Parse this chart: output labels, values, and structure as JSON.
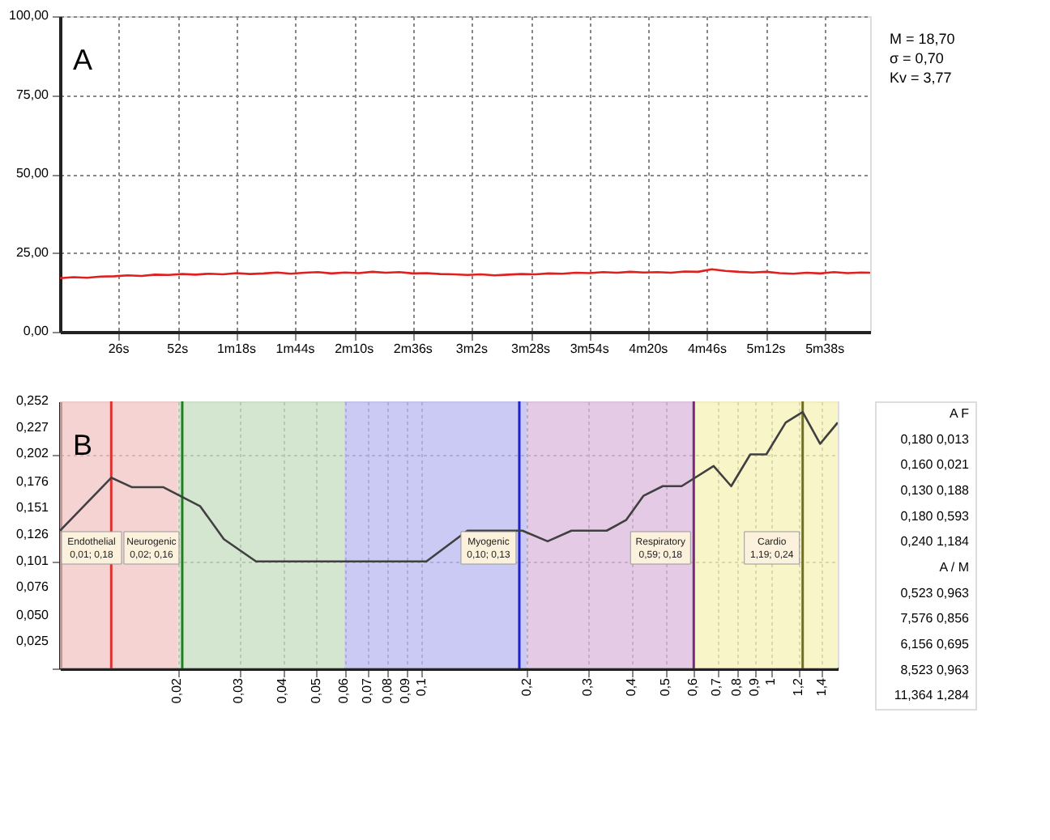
{
  "chart_data": [
    {
      "type": "line",
      "color": "#e02020",
      "xlim": [
        0,
        358
      ],
      "ylim": [
        0,
        100
      ],
      "grid": true,
      "x": [
        0,
        6,
        12,
        18,
        24,
        30,
        36,
        42,
        48,
        54,
        60,
        66,
        72,
        78,
        84,
        90,
        96,
        102,
        108,
        114,
        120,
        126,
        132,
        138,
        144,
        150,
        156,
        162,
        168,
        174,
        180,
        186,
        192,
        198,
        204,
        210,
        216,
        222,
        228,
        234,
        240,
        246,
        252,
        258,
        264,
        270,
        276,
        282,
        288,
        294,
        300,
        306,
        312,
        318,
        324,
        330,
        336,
        342,
        348,
        354,
        358
      ],
      "values": [
        17.0,
        17.3,
        17.1,
        17.5,
        17.6,
        17.9,
        17.7,
        18.1,
        18.0,
        18.3,
        18.1,
        18.4,
        18.2,
        18.6,
        18.3,
        18.5,
        18.8,
        18.4,
        18.7,
        18.9,
        18.5,
        18.8,
        18.6,
        19.0,
        18.7,
        18.9,
        18.5,
        18.6,
        18.3,
        18.2,
        18.0,
        18.2,
        17.9,
        18.1,
        18.3,
        18.2,
        18.5,
        18.4,
        18.7,
        18.6,
        18.9,
        18.7,
        19.0,
        18.8,
        18.9,
        18.7,
        19.1,
        19.0,
        19.8,
        19.3,
        19.0,
        18.8,
        19.0,
        18.6,
        18.4,
        18.7,
        18.5,
        18.9,
        18.6,
        18.8,
        18.7
      ],
      "xticks": [
        {
          "value": 26,
          "label": "26s"
        },
        {
          "value": 52,
          "label": "52s"
        },
        {
          "value": 78,
          "label": "1m18s"
        },
        {
          "value": 104,
          "label": "1m44s"
        },
        {
          "value": 130,
          "label": "2m10s"
        },
        {
          "value": 156,
          "label": "2m36s"
        },
        {
          "value": 182,
          "label": "3m2s"
        },
        {
          "value": 208,
          "label": "3m28s"
        },
        {
          "value": 234,
          "label": "3m54s"
        },
        {
          "value": 260,
          "label": "4m20s"
        },
        {
          "value": 286,
          "label": "4m46s"
        },
        {
          "value": 312,
          "label": "5m12s"
        },
        {
          "value": 338,
          "label": "5m38s"
        }
      ],
      "yticks": [
        {
          "value": 0,
          "label": "0,00"
        },
        {
          "value": 25,
          "label": "25,00"
        },
        {
          "value": 50,
          "label": "50,00"
        },
        {
          "value": 75,
          "label": "75,00"
        },
        {
          "value": 100,
          "label": "100,00"
        }
      ],
      "annotations": [
        "A",
        "M   = 18,70",
        "σ   = 0,70",
        "Kv  = 3,77"
      ]
    },
    {
      "type": "line",
      "color": "#404040",
      "log": "x",
      "grid": true,
      "xlim": [
        0.0092,
        1.55
      ],
      "ylim": [
        0,
        0.252
      ],
      "x": [
        0.0092,
        0.0129,
        0.0148,
        0.0182,
        0.0232,
        0.0271,
        0.0335,
        0.103,
        0.135,
        0.194,
        0.229,
        0.268,
        0.338,
        0.384,
        0.431,
        0.489,
        0.554,
        0.684,
        0.768,
        0.871,
        0.968,
        1.1,
        1.23,
        1.38,
        1.55
      ],
      "values": [
        0.13,
        0.18,
        0.171,
        0.171,
        0.153,
        0.122,
        0.101,
        0.101,
        0.13,
        0.13,
        0.12,
        0.13,
        0.13,
        0.14,
        0.163,
        0.172,
        0.172,
        0.191,
        0.172,
        0.202,
        0.202,
        0.232,
        0.242,
        0.212,
        0.232
      ],
      "xticks": [
        {
          "value": 0.02,
          "label": "0,02"
        },
        {
          "value": 0.03,
          "label": "0,03"
        },
        {
          "value": 0.04,
          "label": "0,04"
        },
        {
          "value": 0.05,
          "label": "0,05"
        },
        {
          "value": 0.06,
          "label": "0,06"
        },
        {
          "value": 0.07,
          "label": "0,07"
        },
        {
          "value": 0.08,
          "label": "0,08"
        },
        {
          "value": 0.09,
          "label": "0,09"
        },
        {
          "value": 0.1,
          "label": "0,1"
        },
        {
          "value": 0.2,
          "label": "0,2"
        },
        {
          "value": 0.3,
          "label": "0,3"
        },
        {
          "value": 0.4,
          "label": "0,4"
        },
        {
          "value": 0.5,
          "label": "0,5"
        },
        {
          "value": 0.6,
          "label": "0,6"
        },
        {
          "value": 0.7,
          "label": "0,7"
        },
        {
          "value": 0.8,
          "label": "0,8"
        },
        {
          "value": 0.9,
          "label": "0,9"
        },
        1,
        {
          "value": 1.2,
          "label": "1,2"
        },
        {
          "value": 1.4,
          "label": "1,4"
        }
      ],
      "yticks": [
        {
          "value": 0,
          "label": null
        },
        {
          "value": 0.025,
          "label": "0,025"
        },
        {
          "value": 0.05,
          "label": "0,050"
        },
        {
          "value": 0.076,
          "label": "0,076"
        },
        {
          "value": 0.101,
          "label": "0,101"
        },
        {
          "value": 0.126,
          "label": "0,126"
        },
        {
          "value": 0.151,
          "label": "0,151"
        },
        {
          "value": 0.176,
          "label": "0,176"
        },
        {
          "value": 0.202,
          "label": "0,202"
        },
        {
          "value": 0.227,
          "label": "0,227"
        },
        {
          "value": 0.252,
          "label": "0,252"
        }
      ],
      "bands": [
        {
          "axis": "x",
          "from": 0.0092,
          "to": 0.02,
          "color": "#f2c4c4"
        },
        {
          "axis": "x",
          "from": 0.02,
          "to": 0.06,
          "color": "#c5dcc0"
        },
        {
          "axis": "x",
          "from": 0.06,
          "to": 0.2,
          "color": "#b8b8f0"
        },
        {
          "axis": "x",
          "from": 0.2,
          "to": 0.6,
          "color": "#dcb8dc"
        },
        {
          "axis": "x",
          "from": 0.6,
          "to": 1.55,
          "color": "#f5f2b5"
        }
      ],
      "ref_lines": [
        {
          "axis": "x",
          "value": 0.0129,
          "color": "#e03030",
          "label": "Endothelial\n0,01; 0,18"
        },
        {
          "axis": "x",
          "value": 0.0206,
          "color": "#208020",
          "label": "Neurogenic\n0,02; 0,16"
        },
        {
          "axis": "x",
          "value": 0.19,
          "color": "#2020d0",
          "label": "Myogenic\n0,10; 0,13"
        },
        {
          "axis": "x",
          "value": 0.6,
          "color": "#7a2a7a",
          "label": "Respiratory\n0,59; 0,18"
        },
        {
          "axis": "x",
          "value": 1.23,
          "color": "#707020",
          "label": "Cardio\n1,19; 0,24"
        }
      ],
      "annotations": [
        "B"
      ]
    },
    {
      "type": "other",
      "annotations": [
        "A      F",
        "0,180   0,013",
        "0,160   0,021",
        "0,130   0,188",
        "0,180   0,593",
        "0,240   1,184",
        "A / M",
        "0,523   0,963",
        "7,576   0,856",
        "6,156   0,695",
        "8,523   0,963",
        "11,364   1,284"
      ]
    }
  ]
}
